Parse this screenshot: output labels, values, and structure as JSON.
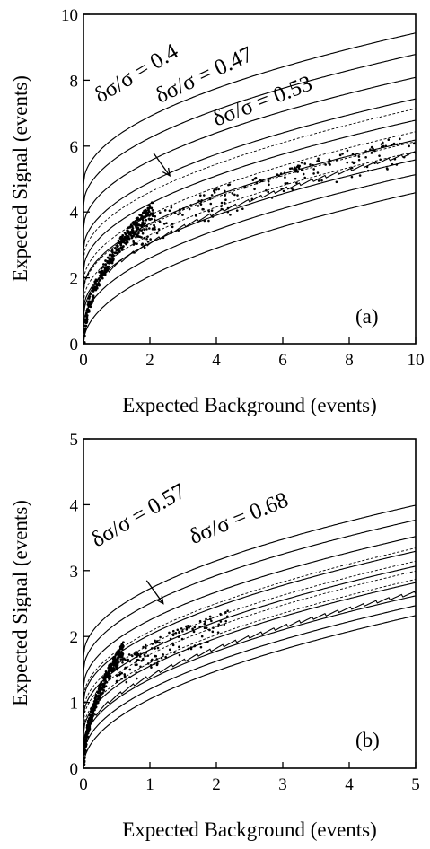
{
  "chart_data": [
    {
      "type": "scatter",
      "panel_label": "(a)",
      "xlabel": "Expected Background (events)",
      "ylabel": "Expected Signal (events)",
      "xlim": [
        0,
        10
      ],
      "ylim": [
        0,
        10
      ],
      "xticks": [
        "0",
        "2",
        "4",
        "6",
        "8",
        "10"
      ],
      "yticks": [
        "0",
        "2",
        "4",
        "6",
        "8",
        "10"
      ],
      "solid_curve_offsets": [
        0,
        0.55,
        1.0,
        1.6,
        2.2,
        2.85,
        3.5,
        4.2,
        4.85
      ],
      "dashed_curve_offsets": [
        1.25,
        1.55,
        1.85,
        2.55
      ],
      "sawtooth_curve": {
        "offset": 0.85,
        "scale": 1.08
      },
      "annotations": [
        {
          "text": "δσ/σ = 0.4",
          "x": 0.5,
          "y": 7.3,
          "rotation": -31
        },
        {
          "text": "δσ/σ = 0.47",
          "x": 2.3,
          "y": 7.3,
          "rotation": -25
        },
        {
          "text": "δσ/σ = 0.53",
          "x": 4.0,
          "y": 6.6,
          "rotation": -21
        }
      ],
      "arrow": {
        "from": [
          2.1,
          5.8
        ],
        "to": [
          2.6,
          5.1
        ]
      },
      "points": {
        "branch": {
          "x_start": 0.03,
          "x_end": 2.1,
          "y_at_start": 0.15,
          "y_at_end": 4.1
        },
        "cloud": {
          "x_start": 1.5,
          "x_end": 10,
          "count": 230
        }
      }
    },
    {
      "type": "scatter",
      "panel_label": "(b)",
      "xlabel": "Expected Background (events)",
      "ylabel": "Expected Signal (events)",
      "xlim": [
        0,
        5
      ],
      "ylim": [
        0,
        5
      ],
      "xticks": [
        "0",
        "1",
        "2",
        "3",
        "4",
        "5"
      ],
      "yticks": [
        "0",
        "1",
        "2",
        "3",
        "4",
        "5"
      ],
      "solid_curve_offsets": [
        0.05,
        0.35,
        0.65,
        1.05,
        1.55,
        2.0,
        2.45,
        2.95,
        3.4
      ],
      "dashed_curve_offsets": [
        1.15,
        1.4,
        1.7,
        2.1
      ],
      "sawtooth_curve": {
        "offset": 0.75,
        "scale": 1.0
      },
      "annotations": [
        {
          "text": "δσ/σ = 0.57",
          "x": 0.2,
          "y": 3.35,
          "rotation": -30
        },
        {
          "text": "δσ/σ = 0.68",
          "x": 1.65,
          "y": 3.4,
          "rotation": -22
        }
      ],
      "arrow": {
        "from": [
          0.95,
          2.85
        ],
        "to": [
          1.2,
          2.5
        ]
      },
      "points": {
        "branch": {
          "x_start": 0.01,
          "x_end": 0.6,
          "y_at_start": 0.05,
          "y_at_end": 1.8
        },
        "cloud": {
          "x_start": 0.5,
          "x_end": 2.2,
          "count": 140
        }
      }
    }
  ]
}
